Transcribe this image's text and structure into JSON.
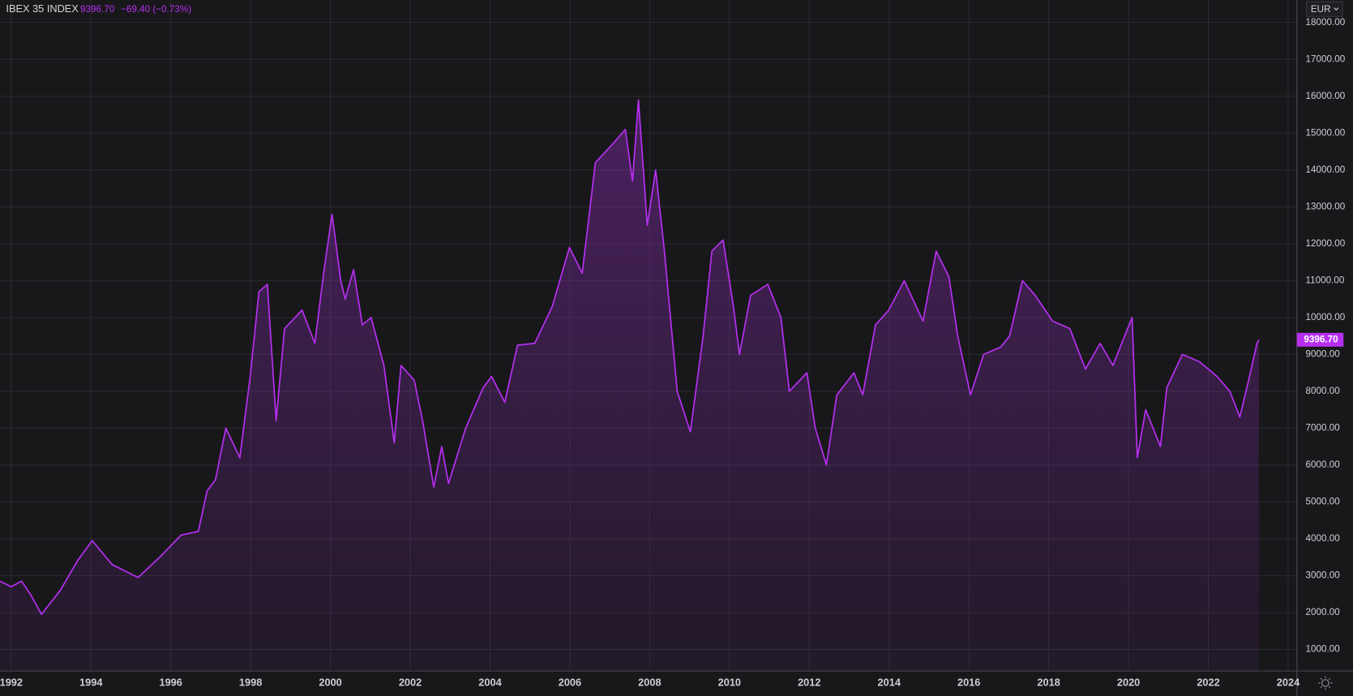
{
  "chart_data": {
    "type": "area",
    "title": "IBEX 35 INDEX",
    "currency": "EUR",
    "last_price": {
      "value": 9396.7,
      "label": "9396.70"
    },
    "change_label": "−69.40 (−0.73%)",
    "xlim": [
      1991.72,
      2024.22
    ],
    "ylim": [
      415,
      18610
    ],
    "xticks": [
      1992,
      1994,
      1996,
      1998,
      2000,
      2002,
      2004,
      2006,
      2008,
      2010,
      2012,
      2014,
      2016,
      2018,
      2020,
      2022,
      2024
    ],
    "yticks": [
      {
        "value": 1000,
        "label": "1000.00"
      },
      {
        "value": 2000,
        "label": "2000.00"
      },
      {
        "value": 3000,
        "label": "3000.00"
      },
      {
        "value": 4000,
        "label": "4000.00"
      },
      {
        "value": 5000,
        "label": "5000.00"
      },
      {
        "value": 6000,
        "label": "6000.00"
      },
      {
        "value": 7000,
        "label": "7000.00"
      },
      {
        "value": 8000,
        "label": "8000.00"
      },
      {
        "value": 9000,
        "label": "9000.00"
      },
      {
        "value": 10000,
        "label": "10000.00"
      },
      {
        "value": 11000,
        "label": "11000.00"
      },
      {
        "value": 12000,
        "label": "12000.00"
      },
      {
        "value": 13000,
        "label": "13000.00"
      },
      {
        "value": 14000,
        "label": "14000.00"
      },
      {
        "value": 15000,
        "label": "15000.00"
      },
      {
        "value": 16000,
        "label": "16000.00"
      },
      {
        "value": 17000,
        "label": "17000.00"
      },
      {
        "value": 18000,
        "label": "18000.00"
      }
    ],
    "grid": true,
    "series": [
      {
        "color": "#b62ff0",
        "x": [
          1991.72,
          1992.0,
          1992.26,
          1992.48,
          1992.76,
          1993.23,
          1993.66,
          1994.03,
          1994.53,
          1995.18,
          1995.72,
          1996.26,
          1996.69,
          1996.91,
          1997.12,
          1997.38,
          1997.73,
          1997.99,
          1998.21,
          1998.42,
          1998.64,
          1998.85,
          1999.29,
          1999.61,
          1999.83,
          2000.04,
          2000.26,
          2000.37,
          2000.58,
          2000.8,
          2001.02,
          2001.34,
          2001.6,
          2001.77,
          2002.1,
          2002.31,
          2002.59,
          2002.79,
          2002.96,
          2003.39,
          2003.83,
          2004.04,
          2004.37,
          2004.69,
          2005.12,
          2005.56,
          2005.99,
          2006.31,
          2006.64,
          2007.07,
          2007.39,
          2007.57,
          2007.72,
          2007.94,
          2008.15,
          2008.37,
          2008.69,
          2009.02,
          2009.34,
          2009.56,
          2009.84,
          2010.1,
          2010.25,
          2010.53,
          2010.96,
          2011.29,
          2011.5,
          2011.94,
          2012.15,
          2012.43,
          2012.69,
          2013.12,
          2013.34,
          2013.66,
          2013.99,
          2014.38,
          2014.85,
          2015.18,
          2015.5,
          2015.72,
          2016.04,
          2016.37,
          2016.8,
          2017.02,
          2017.34,
          2017.66,
          2018.1,
          2018.53,
          2018.92,
          2019.29,
          2019.61,
          2019.83,
          2020.09,
          2020.22,
          2020.43,
          2020.8,
          2020.96,
          2021.35,
          2021.78,
          2022.22,
          2022.54,
          2022.79,
          2023.01,
          2023.22,
          2023.27
        ],
        "values": [
          2850,
          2700,
          2850,
          2500,
          1950,
          2600,
          3400,
          3950,
          3300,
          2950,
          3500,
          4100,
          4200,
          5300,
          5600,
          7000,
          6200,
          8400,
          10700,
          10900,
          7200,
          9700,
          10200,
          9300,
          11200,
          12800,
          11000,
          10500,
          11300,
          9800,
          10000,
          8700,
          6600,
          8700,
          8300,
          7200,
          5400,
          6500,
          5500,
          7000,
          8100,
          8400,
          7700,
          9250,
          9300,
          10300,
          11900,
          11200,
          14200,
          14700,
          15100,
          13700,
          15900,
          12500,
          14000,
          11800,
          8000,
          6900,
          9500,
          11800,
          12100,
          10300,
          9000,
          10600,
          10900,
          10000,
          8000,
          8500,
          7000,
          6000,
          7900,
          8500,
          7900,
          9800,
          10200,
          11000,
          9900,
          11800,
          11100,
          9500,
          7900,
          9000,
          9200,
          9500,
          11000,
          10600,
          9900,
          9700,
          8600,
          9300,
          8700,
          9300,
          10000,
          6200,
          7500,
          6500,
          8100,
          9000,
          8800,
          8400,
          8000,
          7300,
          8300,
          9300,
          9396.7
        ]
      }
    ]
  }
}
